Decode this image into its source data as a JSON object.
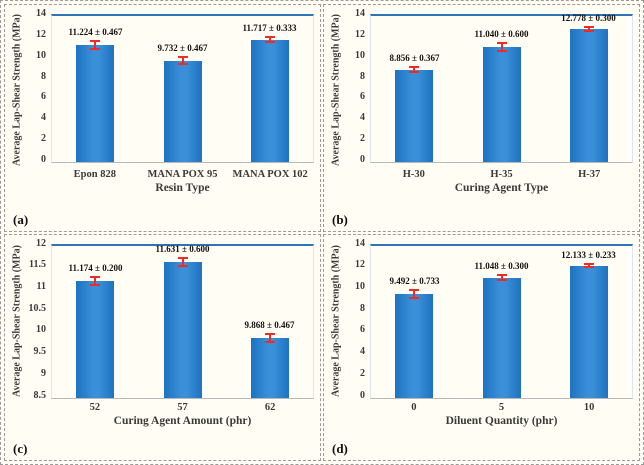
{
  "figure": {
    "background": "#fffdf4",
    "bar_color": "#2e86cd",
    "bar_edge_color": "#1d73c0",
    "error_bar_color": "#ee2b24",
    "plot_top_line_color": "#2e75b6",
    "text_color": "#3a3a3a",
    "border_style": "dashed gray"
  },
  "chart_data": [
    {
      "type": "bar",
      "panel_label": "(a)",
      "title": "",
      "xlabel": "Resin Type",
      "ylabel": "Average Lap-Shear Strength (MPa)",
      "categories": [
        "Epon 828",
        "MANA POX 95",
        "MANA POX 102"
      ],
      "values": [
        11.224,
        9.732,
        11.717
      ],
      "errors": [
        0.467,
        0.467,
        0.333
      ],
      "data_labels": [
        "11.224 ± 0.467",
        "9.732 ± 0.467",
        "11.717 ± 0.333"
      ],
      "ylim": [
        0,
        14
      ],
      "yticks": [
        "0",
        "2",
        "4",
        "6",
        "8",
        "10",
        "12",
        "14"
      ],
      "grid": false,
      "legend": false
    },
    {
      "type": "bar",
      "panel_label": "(b)",
      "title": "",
      "xlabel": "Curing Agent Type",
      "ylabel": "Average Lap-Shear Strength (MPa)",
      "categories": [
        "H-30",
        "H-35",
        "H-37"
      ],
      "values": [
        8.856,
        11.04,
        12.778
      ],
      "errors": [
        0.367,
        0.6,
        0.3
      ],
      "data_labels": [
        "8.856 ± 0.367",
        "11.040 ± 0.600",
        "12.778 ± 0.300"
      ],
      "ylim": [
        0,
        14
      ],
      "yticks": [
        "0",
        "2",
        "4",
        "6",
        "8",
        "10",
        "12",
        "14"
      ],
      "grid": false,
      "legend": false
    },
    {
      "type": "bar",
      "panel_label": "(c)",
      "title": "",
      "xlabel": "Curing Agent Amount (phr)",
      "ylabel": "Average Lap-Shear Strength (MPa)",
      "categories": [
        "52",
        "57",
        "62"
      ],
      "values": [
        11.174,
        11.631,
        9.868
      ],
      "errors": [
        0.2,
        0.6,
        0.467
      ],
      "data_labels": [
        "11.174 ± 0.200",
        "11.631 ± 0.600",
        "9.868 ± 0.467"
      ],
      "ylim": [
        8.5,
        12
      ],
      "yticks": [
        "8.5",
        "9",
        "9.5",
        "10",
        "10.5",
        "11",
        "11.5",
        "12"
      ],
      "grid": false,
      "legend": false
    },
    {
      "type": "bar",
      "panel_label": "(d)",
      "title": "",
      "xlabel": "Diluent Quantity (phr)",
      "ylabel": "Average Lap-Shear Strength (MPa)",
      "categories": [
        "0",
        "5",
        "10"
      ],
      "values": [
        9.492,
        11.048,
        12.133
      ],
      "errors": [
        0.733,
        0.3,
        0.233
      ],
      "data_labels": [
        "9.492 ± 0.733",
        "11.048 ± 0.300",
        "12.133 ± 0.233"
      ],
      "ylim": [
        0,
        14
      ],
      "yticks": [
        "0",
        "2",
        "4",
        "6",
        "8",
        "10",
        "12",
        "14"
      ],
      "grid": false,
      "legend": false
    }
  ]
}
